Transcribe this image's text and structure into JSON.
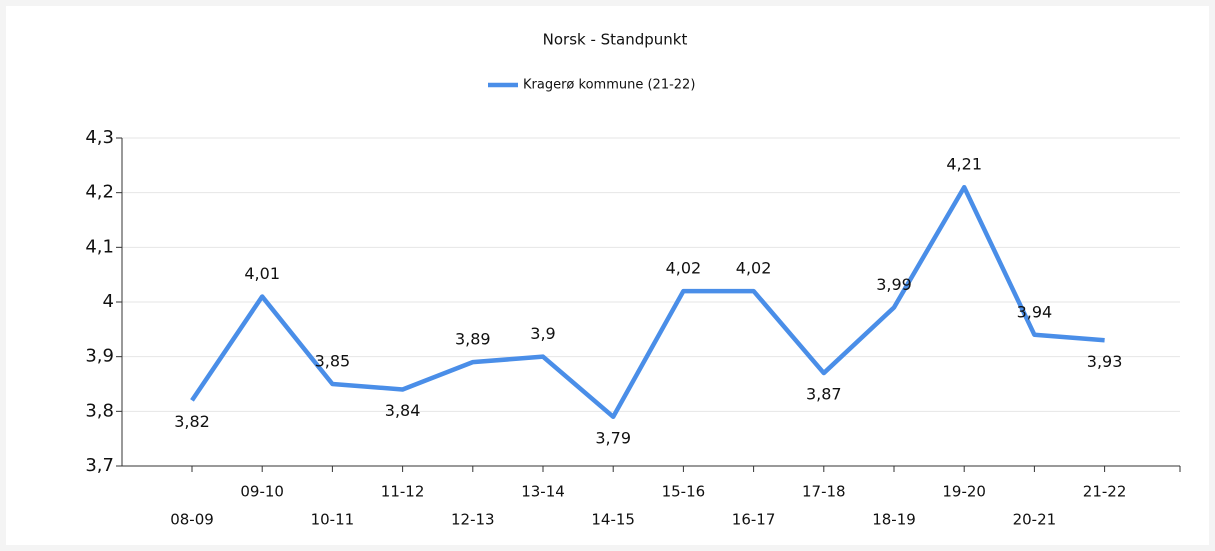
{
  "chart_data": {
    "type": "line",
    "title": "Norsk - Standpunkt",
    "categories": [
      "08-09",
      "09-10",
      "10-11",
      "11-12",
      "12-13",
      "13-14",
      "14-15",
      "15-16",
      "16-17",
      "17-18",
      "18-19",
      "19-20",
      "20-21",
      "21-22"
    ],
    "series": [
      {
        "name": "Kragerø kommune (21-22)",
        "color": "#4a8ee8",
        "values": [
          3.82,
          4.01,
          3.85,
          3.84,
          3.89,
          3.9,
          3.79,
          4.02,
          4.02,
          3.87,
          3.99,
          4.21,
          3.94,
          3.93
        ],
        "value_labels": [
          "3,82",
          "4,01",
          "3,85",
          "3,84",
          "3,89",
          "3,9",
          "3,79",
          "4,02",
          "4,02",
          "3,87",
          "3,99",
          "4,21",
          "3,94",
          "3,93"
        ]
      }
    ],
    "ylim": [
      3.7,
      4.3
    ],
    "yticks": [
      {
        "value": 3.7,
        "label": "3,7"
      },
      {
        "value": 3.8,
        "label": "3,8"
      },
      {
        "value": 3.9,
        "label": "3,9"
      },
      4,
      {
        "value": 4.1,
        "label": "4,1"
      },
      {
        "value": 4.2,
        "label": "4,2"
      },
      {
        "value": 4.3,
        "label": "4,3"
      }
    ],
    "grid": true,
    "legend": "top"
  }
}
